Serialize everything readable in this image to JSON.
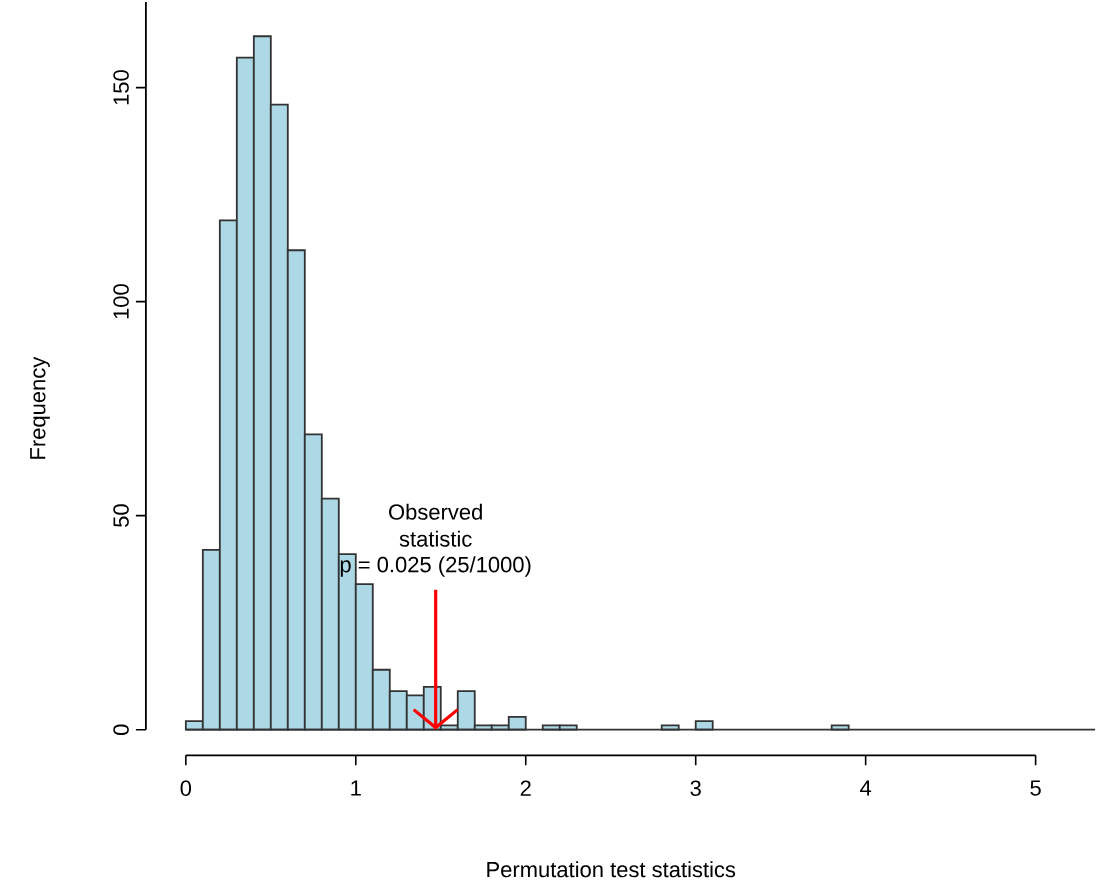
{
  "chart_data": {
    "type": "histogram",
    "xlabel": "Permutation test statistics",
    "ylabel": "Frequency",
    "color": "#add8e6",
    "bins": [
      0,
      0.1,
      0.2,
      0.3,
      0.4,
      0.5,
      0.6,
      0.7,
      0.8,
      0.9,
      1.0,
      1.1,
      1.2,
      1.3,
      1.4,
      1.5,
      1.6,
      1.7,
      1.8,
      1.9,
      2.0,
      2.1,
      2.2,
      2.3,
      2.4,
      2.5,
      2.6,
      2.7,
      2.8,
      2.9,
      3.0,
      3.1,
      3.2,
      3.3,
      3.4,
      3.5,
      3.6,
      3.7,
      3.8,
      3.9
    ],
    "values": [
      2,
      42,
      119,
      157,
      162,
      146,
      112,
      69,
      54,
      41,
      34,
      14,
      9,
      8,
      10,
      1,
      9,
      1,
      1,
      3,
      0,
      1,
      1,
      0,
      0,
      0,
      0,
      0,
      1,
      0,
      2,
      0,
      0,
      0,
      0,
      0,
      0,
      0,
      1
    ],
    "xlim": [
      -0.235,
      5.35
    ],
    "ylim": [
      -6,
      170
    ],
    "xticks": [
      0,
      1,
      2,
      3,
      4,
      5
    ],
    "yticks": [
      0,
      50,
      100,
      150
    ],
    "grid": false,
    "ref_lines": [
      {
        "axis": "y",
        "value": 0,
        "color": "#333333"
      }
    ],
    "annotations": [
      "Observed statistic",
      {
        "text": "p = 0.025 (25/1000)",
        "x": 1.47,
        "y": 0
      }
    ]
  }
}
